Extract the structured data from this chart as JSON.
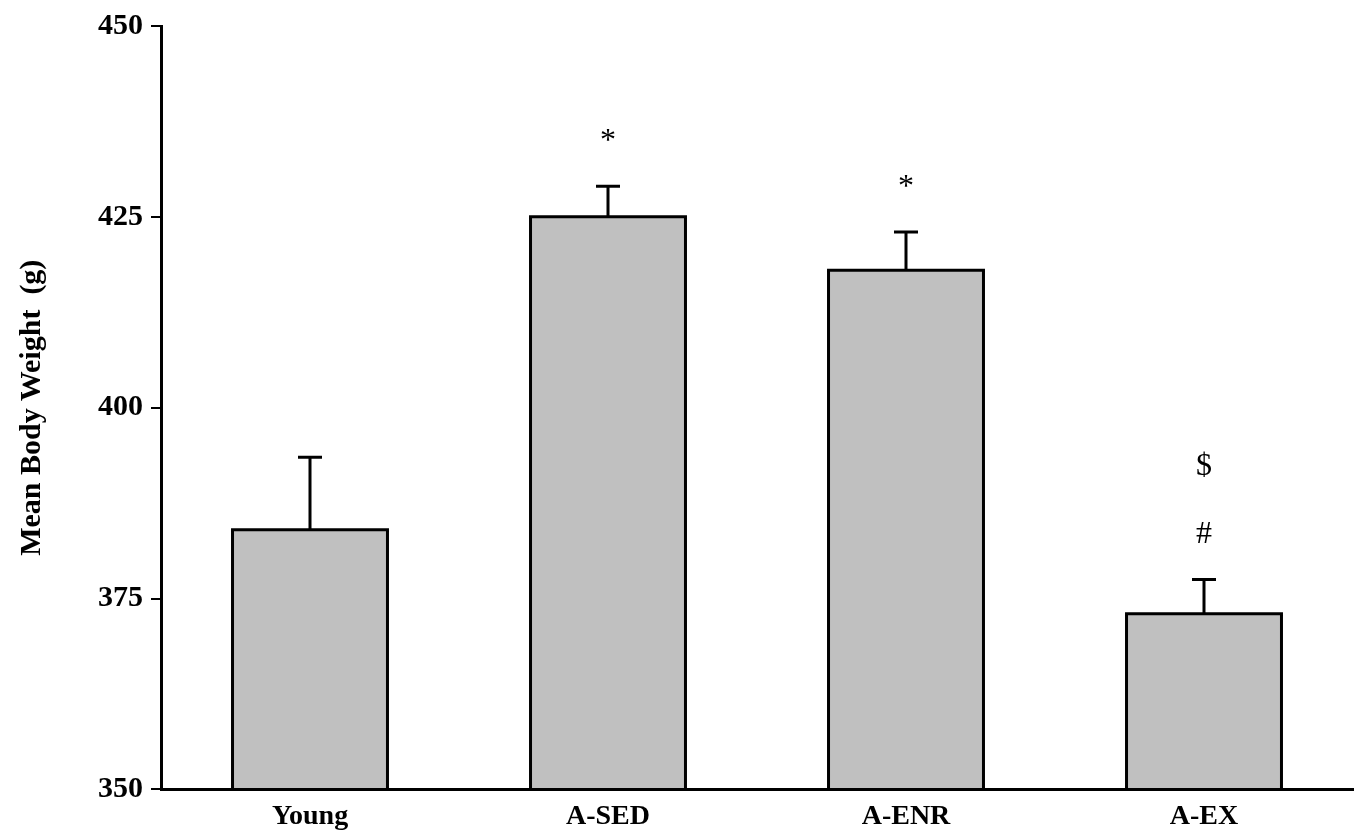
{
  "chart_data": {
    "type": "bar",
    "ylabel": "Mean Body Weight  (g)",
    "categories": [
      "Young",
      "A-SED",
      "A-ENR",
      "A-EX"
    ],
    "values": [
      384,
      425,
      418,
      373
    ],
    "errors": [
      [
        384,
        393.5
      ],
      [
        425,
        429
      ],
      [
        418,
        423
      ],
      [
        373,
        377.5
      ]
    ],
    "color": "#c0c0c0",
    "ylim": [
      350,
      450
    ],
    "yticks": [
      350,
      375,
      400,
      425,
      450
    ],
    "grid": false,
    "legend": false,
    "annotations": [
      {
        "text": "*",
        "x": "A-SED",
        "y": 429
      },
      {
        "text": "*",
        "x": "A-ENR",
        "y": 423
      },
      {
        "text": "#",
        "x": "A-EX",
        "y": 377.5
      },
      "$"
    ]
  }
}
